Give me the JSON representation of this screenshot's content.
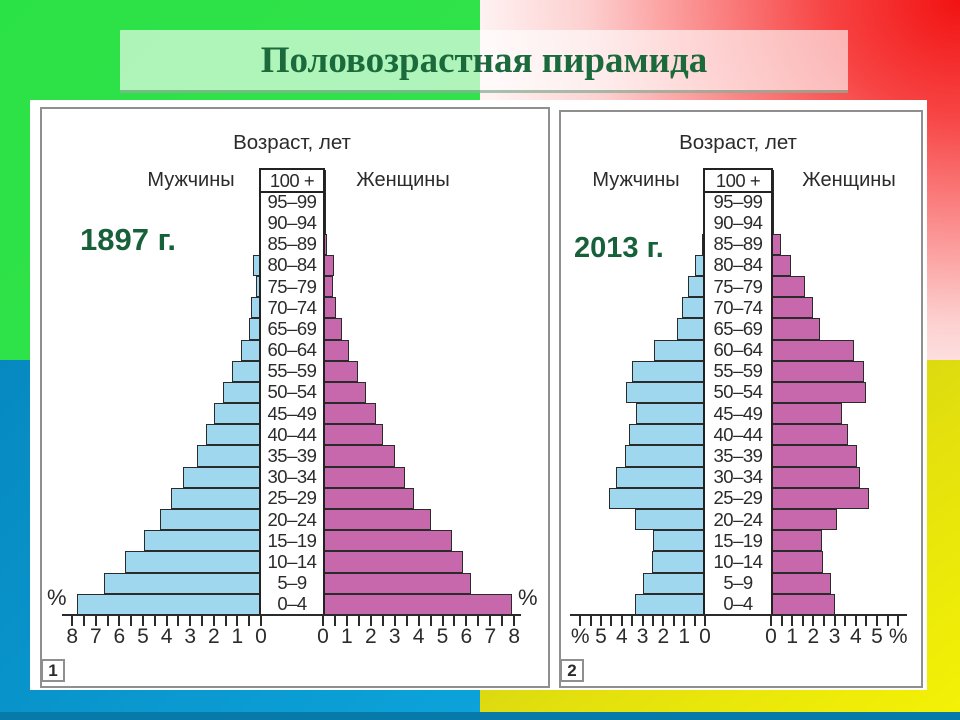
{
  "slide": {
    "title": "Половозрастная пирамида"
  },
  "colors": {
    "male_bar": "#9fd8ee",
    "female_bar": "#c767ac",
    "bar_border": "#2b2b2b",
    "title_text": "#1b6a3c",
    "year_text": "#17603a",
    "bg_green": "#2fe14b",
    "bg_red": "#f51414",
    "bg_blue": "#0a95cf",
    "bg_yellow": "#e4e10d"
  },
  "chart_data": [
    {
      "type": "bar",
      "subtype": "population_pyramid",
      "year_label": "1897 г.",
      "panel_number": "1",
      "axis_title": "Возраст, лет",
      "male_label": "Мужчины",
      "female_label": "Женщины",
      "percent_label": "%",
      "age_groups": [
        "0–4",
        "5–9",
        "10–14",
        "15–19",
        "20–24",
        "25–29",
        "30–34",
        "35–39",
        "40–44",
        "45–49",
        "50–54",
        "55–59",
        "60–64",
        "65–69",
        "70–74",
        "75–79",
        "80–84",
        "85–89",
        "90–94",
        "95–99",
        "100 +"
      ],
      "male_pct": [
        7.8,
        6.65,
        5.75,
        4.95,
        4.3,
        3.8,
        3.3,
        2.7,
        2.35,
        2.0,
        1.6,
        1.25,
        0.85,
        0.5,
        0.42,
        0.2,
        0.34,
        0.1,
        0.08,
        0.06,
        0.04
      ],
      "female_pct": [
        7.9,
        6.2,
        5.85,
        5.4,
        4.5,
        3.8,
        3.45,
        3.0,
        2.5,
        2.2,
        1.8,
        1.45,
        1.1,
        0.8,
        0.55,
        0.4,
        0.45,
        0.18,
        0.14,
        0.1,
        0.06
      ],
      "axis": {
        "max": 8,
        "minor_tick_step": 0.5,
        "left_tick_labels": [
          "8",
          "7",
          "6",
          "5",
          "4",
          "3",
          "2",
          "1",
          "0"
        ],
        "right_tick_labels": [
          "0",
          "1",
          "2",
          "3",
          "4",
          "5",
          "6",
          "7",
          "8"
        ],
        "percent_at_axis_ends": true
      }
    },
    {
      "type": "bar",
      "subtype": "population_pyramid",
      "year_label": "2013 г.",
      "panel_number": "2",
      "axis_title": "Возраст, лет",
      "male_label": "Мужчины",
      "female_label": "Женщины",
      "percent_label": "%",
      "age_groups": [
        "0–4",
        "5–9",
        "10–14",
        "15–19",
        "20–24",
        "25–29",
        "30–34",
        "35–39",
        "40–44",
        "45–49",
        "50–54",
        "55–59",
        "60–64",
        "65–69",
        "70–74",
        "75–79",
        "80–84",
        "85–89",
        "90–94",
        "95–99",
        "100 +"
      ],
      "male_pct": [
        3.35,
        3.0,
        2.55,
        2.5,
        3.35,
        4.6,
        4.3,
        3.85,
        3.65,
        3.3,
        3.8,
        3.5,
        2.45,
        1.35,
        1.1,
        0.8,
        0.5,
        0.15,
        0.06,
        0.03,
        0.02
      ],
      "female_pct": [
        3.0,
        2.85,
        2.45,
        2.4,
        3.1,
        4.6,
        4.2,
        4.05,
        3.65,
        3.35,
        4.5,
        4.4,
        3.9,
        2.3,
        2.0,
        1.6,
        0.95,
        0.45,
        0.15,
        0.06,
        0.03
      ],
      "axis": {
        "max": 5,
        "minor_tick_step": 0.5,
        "left_tick_labels": [
          "%",
          "5",
          "4",
          "3",
          "2",
          "1",
          "0"
        ],
        "right_tick_labels": [
          "0",
          "1",
          "2",
          "3",
          "4",
          "5",
          "%"
        ],
        "percent_at_axis_ends": false
      }
    }
  ]
}
